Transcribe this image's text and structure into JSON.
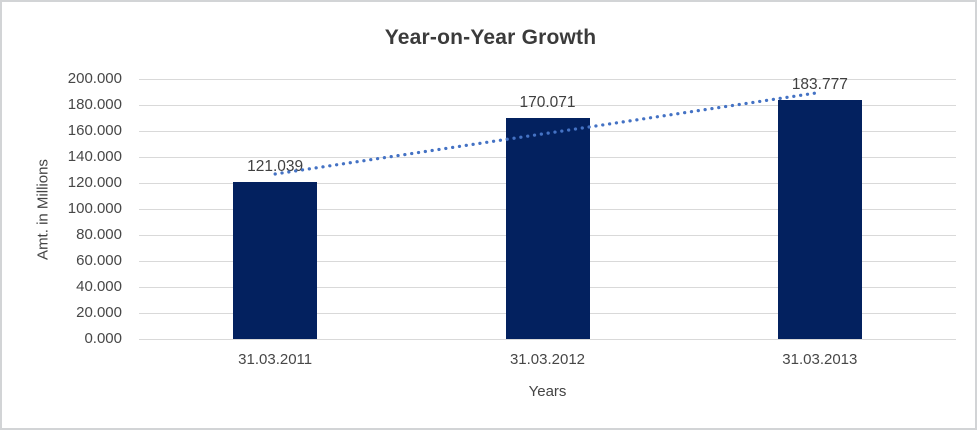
{
  "chart_data": {
    "type": "bar",
    "title": "Year-on-Year Growth",
    "xlabel": "Years",
    "ylabel": "Amt. in Millions",
    "categories": [
      "31.03.2011",
      "31.03.2012",
      "31.03.2013"
    ],
    "values": [
      121.039,
      170.071,
      183.777
    ],
    "value_labels": [
      "121.039",
      "170.071",
      "183.777"
    ],
    "ylim": [
      0,
      200
    ],
    "ytick_step": 20,
    "ytick_labels": [
      "0.000",
      "20.000",
      "40.000",
      "60.000",
      "80.000",
      "100.000",
      "120.000",
      "140.000",
      "160.000",
      "180.000",
      "200.000"
    ],
    "grid": true,
    "legend": "none",
    "trendline": {
      "style": "dotted",
      "fit": "linear"
    },
    "colors": {
      "bar": "#03215f",
      "trendline": "#4472c4",
      "gridline": "#d9d9d9",
      "title_text": "#3b3b3b",
      "axis_text": "#474747",
      "frame_border": "#d2d4d6",
      "background": "#ffffff"
    }
  }
}
